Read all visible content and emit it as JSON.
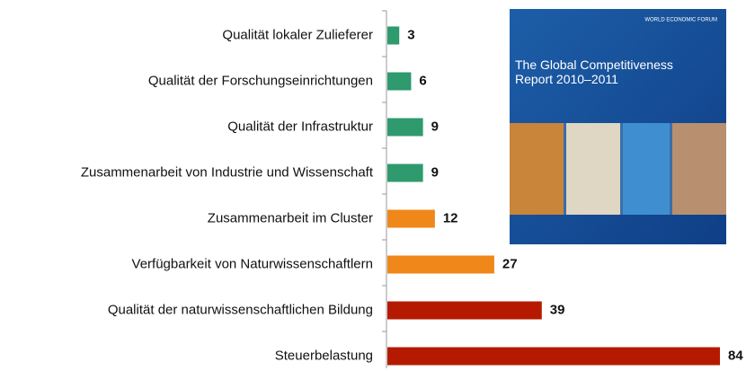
{
  "chart_data": {
    "type": "bar",
    "orientation": "horizontal",
    "categories": [
      "Qualität lokaler Zulieferer",
      "Qualität der Forschungseinrichtungen",
      "Qualität der Infrastruktur",
      "Zusammenarbeit von Industrie und Wissenschaft",
      "Zusammenarbeit im Cluster",
      "Verfügbarkeit von Naturwissenschaftlern",
      "Qualität der naturwissenschaftlichen Bildung",
      "Steuerbelastung"
    ],
    "values": [
      3,
      6,
      9,
      9,
      12,
      27,
      39,
      84
    ],
    "colors": [
      "#2e9a6e",
      "#2e9a6e",
      "#2e9a6e",
      "#2e9a6e",
      "#f0871a",
      "#f0871a",
      "#b51a00",
      "#b51a00"
    ]
  },
  "cover": {
    "publisher": "WORLD ECONOMIC FORUM",
    "title": "The Global Competitiveness Report 2010–2011"
  }
}
